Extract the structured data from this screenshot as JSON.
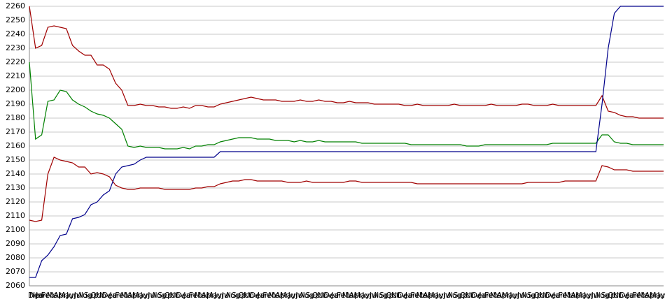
{
  "chart_data": {
    "type": "line",
    "categories": [
      "Nov",
      "Dec",
      "Jan",
      "Feb",
      "Mar",
      "Apr",
      "May",
      "Jun",
      "Jul",
      "Aug",
      "Sep",
      "Oct",
      "Nov",
      "Dec",
      "Jan",
      "Feb",
      "Mar",
      "Apr",
      "May",
      "Jun",
      "Jul",
      "Aug",
      "Sep",
      "Oct",
      "Nov",
      "Dec",
      "Jan",
      "Feb",
      "Mar",
      "Apr",
      "May",
      "Jun",
      "Jul",
      "Aug",
      "Sep",
      "Oct",
      "Nov",
      "Dec",
      "Jan",
      "Feb",
      "Mar",
      "Apr",
      "May",
      "Jun",
      "Jul",
      "Aug",
      "Sep",
      "Oct",
      "Nov",
      "Dec",
      "Jan",
      "Feb",
      "Mar",
      "Apr",
      "May",
      "Jun",
      "Jul",
      "Aug",
      "Sep",
      "Oct",
      "Nov",
      "Dec",
      "Jan",
      "Feb",
      "Mar",
      "Apr",
      "May",
      "Jun",
      "Jul",
      "Aug",
      "Sep",
      "Oct",
      "Nov",
      "Dec",
      "Jan",
      "Feb",
      "Mar",
      "Apr",
      "May",
      "Jun",
      "Jul",
      "Aug",
      "Sep",
      "Oct",
      "Nov",
      "Dec",
      "Jan",
      "Feb",
      "Mar",
      "Apr",
      "May",
      "Jun",
      "Jul",
      "Aug",
      "Sep",
      "Oct",
      "Nov",
      "Dec",
      "Jan",
      "Feb",
      "Mar",
      "Apr",
      "May",
      "Jun"
    ],
    "series": [
      {
        "color": "#a00000",
        "values": [
          2260,
          2230,
          2232,
          2245,
          2246,
          2245,
          2244,
          2232,
          2228,
          2225,
          2225,
          2218,
          2218,
          2215,
          2205,
          2200,
          2189,
          2189,
          2190,
          2189,
          2189,
          2188,
          2188,
          2187,
          2187,
          2188,
          2187,
          2189,
          2189,
          2188,
          2188,
          2190,
          2191,
          2192,
          2193,
          2194,
          2195,
          2194,
          2193,
          2193,
          2193,
          2192,
          2192,
          2192,
          2193,
          2192,
          2192,
          2193,
          2192,
          2192,
          2191,
          2191,
          2192,
          2191,
          2191,
          2191,
          2190,
          2190,
          2190,
          2190,
          2190,
          2189,
          2189,
          2190,
          2189,
          2189,
          2189,
          2189,
          2189,
          2190,
          2189,
          2189,
          2189,
          2189,
          2189,
          2190,
          2189,
          2189,
          2189,
          2189,
          2190,
          2190,
          2189,
          2189,
          2189,
          2190,
          2189,
          2189,
          2189,
          2189,
          2189,
          2189,
          2189,
          2196,
          2185,
          2184,
          2182,
          2181,
          2181,
          2180,
          2180,
          2180,
          2180,
          2180
        ]
      },
      {
        "color": "#008000",
        "values": [
          2220,
          2165,
          2168,
          2192,
          2193,
          2200,
          2199,
          2193,
          2190,
          2188,
          2185,
          2183,
          2182,
          2180,
          2176,
          2172,
          2160,
          2159,
          2160,
          2159,
          2159,
          2159,
          2158,
          2158,
          2158,
          2159,
          2158,
          2160,
          2160,
          2161,
          2161,
          2163,
          2164,
          2165,
          2166,
          2166,
          2166,
          2165,
          2165,
          2165,
          2164,
          2164,
          2164,
          2163,
          2164,
          2163,
          2163,
          2164,
          2163,
          2163,
          2163,
          2163,
          2163,
          2163,
          2162,
          2162,
          2162,
          2162,
          2162,
          2162,
          2162,
          2162,
          2161,
          2161,
          2161,
          2161,
          2161,
          2161,
          2161,
          2161,
          2161,
          2160,
          2160,
          2160,
          2161,
          2161,
          2161,
          2161,
          2161,
          2161,
          2161,
          2161,
          2161,
          2161,
          2161,
          2162,
          2162,
          2162,
          2162,
          2162,
          2162,
          2162,
          2162,
          2168,
          2168,
          2163,
          2162,
          2162,
          2161,
          2161,
          2161,
          2161,
          2161,
          2161
        ]
      },
      {
        "color": "#a00000",
        "values": [
          2107,
          2106,
          2107,
          2140,
          2152,
          2150,
          2149,
          2148,
          2145,
          2145,
          2140,
          2141,
          2140,
          2138,
          2132,
          2130,
          2129,
          2129,
          2130,
          2130,
          2130,
          2130,
          2129,
          2129,
          2129,
          2129,
          2129,
          2130,
          2130,
          2131,
          2131,
          2133,
          2134,
          2135,
          2135,
          2136,
          2136,
          2135,
          2135,
          2135,
          2135,
          2135,
          2134,
          2134,
          2134,
          2135,
          2134,
          2134,
          2134,
          2134,
          2134,
          2134,
          2135,
          2135,
          2134,
          2134,
          2134,
          2134,
          2134,
          2134,
          2134,
          2134,
          2134,
          2133,
          2133,
          2133,
          2133,
          2133,
          2133,
          2133,
          2133,
          2133,
          2133,
          2133,
          2133,
          2133,
          2133,
          2133,
          2133,
          2133,
          2133,
          2134,
          2134,
          2134,
          2134,
          2134,
          2134,
          2135,
          2135,
          2135,
          2135,
          2135,
          2135,
          2146,
          2145,
          2143,
          2143,
          2143,
          2142,
          2142,
          2142,
          2142,
          2142,
          2142
        ]
      },
      {
        "color": "#00008b",
        "values": [
          2066,
          2066,
          2078,
          2082,
          2088,
          2096,
          2097,
          2108,
          2109,
          2111,
          2118,
          2120,
          2125,
          2128,
          2140,
          2145,
          2146,
          2147,
          2150,
          2152,
          2152,
          2152,
          2152,
          2152,
          2152,
          2152,
          2152,
          2152,
          2152,
          2152,
          2152,
          2156,
          2156,
          2156,
          2156,
          2156,
          2156,
          2156,
          2156,
          2156,
          2156,
          2156,
          2156,
          2156,
          2156,
          2156,
          2156,
          2156,
          2156,
          2156,
          2156,
          2156,
          2156,
          2156,
          2156,
          2156,
          2156,
          2156,
          2156,
          2156,
          2156,
          2156,
          2156,
          2156,
          2156,
          2156,
          2156,
          2156,
          2156,
          2156,
          2156,
          2156,
          2156,
          2156,
          2156,
          2156,
          2156,
          2156,
          2156,
          2156,
          2156,
          2156,
          2156,
          2156,
          2156,
          2156,
          2156,
          2156,
          2156,
          2156,
          2156,
          2156,
          2156,
          2190,
          2230,
          2255,
          2260,
          2260,
          2260,
          2260,
          2260,
          2260,
          2260,
          2260
        ]
      }
    ],
    "ylim": [
      2060,
      2260
    ],
    "yticks": [
      2060,
      2070,
      2080,
      2090,
      2100,
      2110,
      2120,
      2130,
      2140,
      2150,
      2160,
      2170,
      2180,
      2190,
      2200,
      2210,
      2220,
      2230,
      2240,
      2250,
      2260
    ],
    "grid": true
  }
}
